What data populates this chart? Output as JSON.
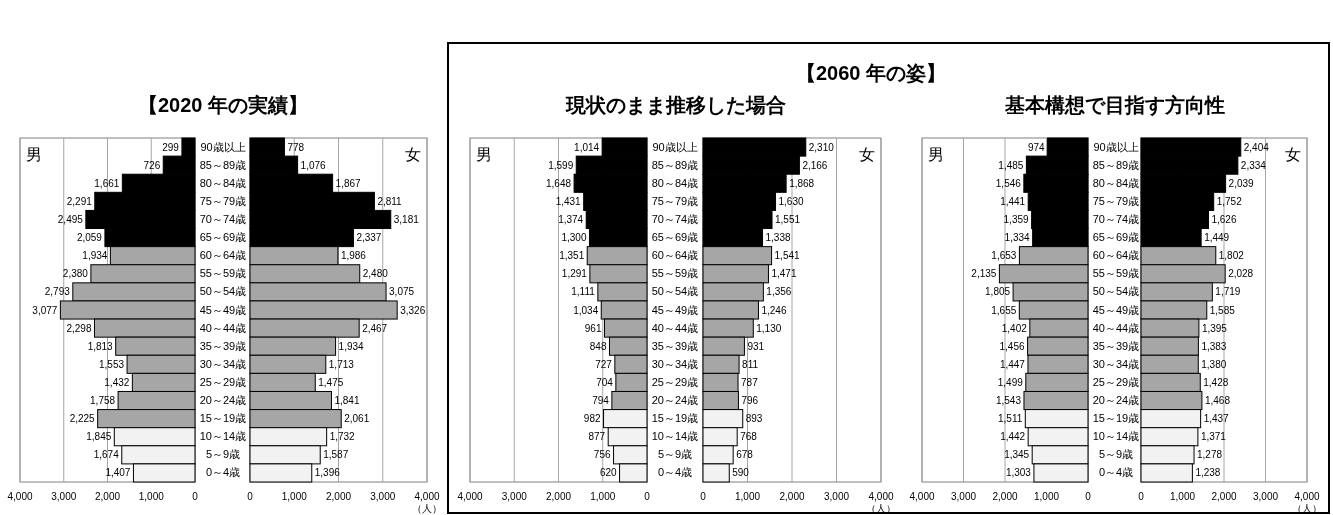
{
  "chart_data": [
    {
      "type": "bar",
      "orientation": "horizontal",
      "title": "【2020 年の実績】",
      "annotations": [
        "男"
      ],
      "categories": [
        "90歳以上",
        "85～89歳",
        "80～84歳",
        "75～79歳",
        "70～74歳",
        "65～69歳",
        "60～64歳",
        "55～59歳",
        "50～54歳",
        "45～49歳",
        "40～44歳",
        "35～39歳",
        "30～34歳",
        "25～29歳",
        "20～24歳",
        "15～19歳",
        "10～14歳",
        "5～9歳",
        "0～4歳"
      ],
      "values": [
        299,
        726,
        1661,
        2291,
        2495,
        2059,
        1934,
        2380,
        2793,
        3077,
        2298,
        1813,
        1553,
        1432,
        1758,
        2225,
        1845,
        1674,
        1407
      ],
      "value_labels": [
        "299",
        "726",
        "1,661",
        "2,291",
        "2,495",
        "2,059",
        "1,934",
        "2,380",
        "2,793",
        "3,077",
        "2,298",
        "1,813",
        "1,553",
        "1,432",
        "1,758",
        "2,225",
        "1,845",
        "1,674",
        "1,407"
      ],
      "colors": [
        "#000000",
        "#000000",
        "#000000",
        "#000000",
        "#000000",
        "#000000",
        "#a6a6a6",
        "#a6a6a6",
        "#a6a6a6",
        "#a6a6a6",
        "#a6a6a6",
        "#a6a6a6",
        "#a6a6a6",
        "#a6a6a6",
        "#a6a6a6",
        "#a6a6a6",
        "#f2f2f2",
        "#f2f2f2",
        "#f2f2f2"
      ],
      "xlim": [
        4000,
        0
      ],
      "xticks": [
        {
          "value": 4000,
          "label": "4,000"
        },
        {
          "value": 3000,
          "label": "3,000"
        },
        {
          "value": 2000,
          "label": "2,000"
        },
        {
          "value": 1000,
          "label": "1,000"
        },
        {
          "value": 0,
          "label": "0"
        }
      ],
      "grid": "x"
    },
    {
      "type": "bar",
      "orientation": "horizontal",
      "annotations": [
        "女"
      ],
      "xlabel": "（人）",
      "tick_labels": "x",
      "categories": [
        null,
        null,
        null,
        null,
        null,
        null,
        null,
        null,
        null,
        null,
        null,
        null,
        null,
        null,
        null,
        null,
        null,
        null,
        null
      ],
      "values": [
        778,
        1076,
        1867,
        2811,
        3181,
        2337,
        1986,
        2480,
        3075,
        3326,
        2467,
        1934,
        1713,
        1475,
        1841,
        2061,
        1732,
        1587,
        1396
      ],
      "value_labels": [
        "778",
        "1,076",
        "1,867",
        "2,811",
        "3,181",
        "2,337",
        "1,986",
        "2,480",
        "3,075",
        "3,326",
        "2,467",
        "1,934",
        "1,713",
        "1,475",
        "1,841",
        "2,061",
        "1,732",
        "1,587",
        "1,396"
      ],
      "colors": [
        "#000000",
        "#000000",
        "#000000",
        "#000000",
        "#000000",
        "#000000",
        "#a6a6a6",
        "#a6a6a6",
        "#a6a6a6",
        "#a6a6a6",
        "#a6a6a6",
        "#a6a6a6",
        "#a6a6a6",
        "#a6a6a6",
        "#a6a6a6",
        "#a6a6a6",
        "#f2f2f2",
        "#f2f2f2",
        "#f2f2f2"
      ],
      "xlim": [
        0,
        4000
      ],
      "xticks": [
        {
          "value": 0,
          "label": "0"
        },
        {
          "value": 1000,
          "label": "1,000"
        },
        {
          "value": 2000,
          "label": "2,000"
        },
        {
          "value": 3000,
          "label": "3,000"
        },
        {
          "value": 4000,
          "label": "4,000"
        }
      ],
      "grid": "x"
    },
    {
      "type": "bar",
      "orientation": "horizontal",
      "title": "現状のまま推移した場合",
      "annotations": [
        "男"
      ],
      "categories": [
        "90歳以上",
        "85～89歳",
        "80～84歳",
        "75～79歳",
        "70～74歳",
        "65～69歳",
        "60～64歳",
        "55～59歳",
        "50～54歳",
        "45～49歳",
        "40～44歳",
        "35～39歳",
        "30～34歳",
        "25～29歳",
        "20～24歳",
        "15～19歳",
        "10～14歳",
        "5～9歳",
        "0～4歳"
      ],
      "values": [
        1014,
        1599,
        1648,
        1431,
        1374,
        1300,
        1351,
        1291,
        1111,
        1034,
        961,
        848,
        727,
        704,
        794,
        982,
        877,
        756,
        620
      ],
      "value_labels": [
        "1,014",
        "1,599",
        "1,648",
        "1,431",
        "1,374",
        "1,300",
        "1,351",
        "1,291",
        "1,111",
        "1,034",
        "961",
        "848",
        "727",
        "704",
        "794",
        "982",
        "877",
        "756",
        "620"
      ],
      "colors": [
        "#000000",
        "#000000",
        "#000000",
        "#000000",
        "#000000",
        "#000000",
        "#a6a6a6",
        "#a6a6a6",
        "#a6a6a6",
        "#a6a6a6",
        "#a6a6a6",
        "#a6a6a6",
        "#a6a6a6",
        "#a6a6a6",
        "#a6a6a6",
        "#f2f2f2",
        "#f2f2f2",
        "#f2f2f2",
        "#f2f2f2"
      ],
      "xlim": [
        4000,
        0
      ],
      "xticks": [
        {
          "value": 4000,
          "label": "4,000"
        },
        {
          "value": 3000,
          "label": "3,000"
        },
        {
          "value": 2000,
          "label": "2,000"
        },
        {
          "value": 1000,
          "label": "1,000"
        },
        {
          "value": 0,
          "label": "0"
        }
      ],
      "grid": "x"
    },
    {
      "type": "bar",
      "orientation": "horizontal",
      "title": "【2060 年の姿】",
      "annotations": [
        "女"
      ],
      "xlabel": "（人）",
      "tick_labels": "x",
      "categories": [
        null,
        null,
        null,
        null,
        null,
        null,
        null,
        null,
        null,
        null,
        null,
        null,
        null,
        null,
        null,
        null,
        null,
        null,
        null
      ],
      "values": [
        2310,
        2166,
        1868,
        1630,
        1551,
        1338,
        1541,
        1471,
        1356,
        1246,
        1130,
        931,
        811,
        787,
        796,
        893,
        768,
        678,
        590
      ],
      "value_labels": [
        "2,310",
        "2,166",
        "1,868",
        "1,630",
        "1,551",
        "1,338",
        "1,541",
        "1,471",
        "1,356",
        "1,246",
        "1,130",
        "931",
        "811",
        "787",
        "796",
        "893",
        "768",
        "678",
        "590"
      ],
      "colors": [
        "#000000",
        "#000000",
        "#000000",
        "#000000",
        "#000000",
        "#000000",
        "#a6a6a6",
        "#a6a6a6",
        "#a6a6a6",
        "#a6a6a6",
        "#a6a6a6",
        "#a6a6a6",
        "#a6a6a6",
        "#a6a6a6",
        "#a6a6a6",
        "#f2f2f2",
        "#f2f2f2",
        "#f2f2f2",
        "#f2f2f2"
      ],
      "xlim": [
        0,
        4000
      ],
      "xticks": [
        {
          "value": 0,
          "label": "0"
        },
        {
          "value": 1000,
          "label": "1,000"
        },
        {
          "value": 2000,
          "label": "2,000"
        },
        {
          "value": 3000,
          "label": "3,000"
        },
        {
          "value": 4000,
          "label": "4,000"
        }
      ],
      "grid": "x"
    },
    {
      "type": "bar",
      "orientation": "horizontal",
      "title": "基本構想で目指す方向性",
      "annotations": [
        "男"
      ],
      "categories": [
        "90歳以上",
        "85～89歳",
        "80～84歳",
        "75～79歳",
        "70～74歳",
        "65～69歳",
        "60～64歳",
        "55～59歳",
        "50～54歳",
        "45～49歳",
        "40～44歳",
        "35～39歳",
        "30～34歳",
        "25～29歳",
        "20～24歳",
        "15～19歳",
        "10～14歳",
        "5～9歳",
        "0～4歳"
      ],
      "values": [
        974,
        1485,
        1546,
        1441,
        1359,
        1334,
        1653,
        2135,
        1805,
        1655,
        1402,
        1456,
        1447,
        1499,
        1543,
        1511,
        1442,
        1345,
        1303
      ],
      "value_labels": [
        "974",
        "1,485",
        "1,546",
        "1,441",
        "1,359",
        "1,334",
        "1,653",
        "2,135",
        "1,805",
        "1,655",
        "1,402",
        "1,456",
        "1,447",
        "1,499",
        "1,543",
        "1,511",
        "1,442",
        "1,345",
        "1,303"
      ],
      "colors": [
        "#000000",
        "#000000",
        "#000000",
        "#000000",
        "#000000",
        "#000000",
        "#a6a6a6",
        "#a6a6a6",
        "#a6a6a6",
        "#a6a6a6",
        "#a6a6a6",
        "#a6a6a6",
        "#a6a6a6",
        "#a6a6a6",
        "#a6a6a6",
        "#f2f2f2",
        "#f2f2f2",
        "#f2f2f2",
        "#f2f2f2"
      ],
      "xlim": [
        4000,
        0
      ],
      "xticks": [
        {
          "value": 4000,
          "label": "4,000"
        },
        {
          "value": 3000,
          "label": "3,000"
        },
        {
          "value": 2000,
          "label": "2,000"
        },
        {
          "value": 1000,
          "label": "1,000"
        },
        {
          "value": 0,
          "label": "0"
        }
      ],
      "grid": "x"
    },
    {
      "type": "bar",
      "orientation": "horizontal",
      "annotations": [
        "女"
      ],
      "xlabel": "（人）",
      "tick_labels": "x",
      "categories": [
        null,
        null,
        null,
        null,
        null,
        null,
        null,
        null,
        null,
        null,
        null,
        null,
        null,
        null,
        null,
        null,
        null,
        null,
        null
      ],
      "values": [
        2404,
        2334,
        2039,
        1752,
        1626,
        1449,
        1802,
        2028,
        1719,
        1585,
        1395,
        1383,
        1380,
        1428,
        1468,
        1437,
        1371,
        1278,
        1238
      ],
      "value_labels": [
        "2,404",
        "2,334",
        "2,039",
        "1,752",
        "1,626",
        "1,449",
        "1,802",
        "2,028",
        "1,719",
        "1,585",
        "1,395",
        "1,383",
        "1,380",
        "1,428",
        "1,468",
        "1,437",
        "1,371",
        "1,278",
        "1,238"
      ],
      "colors": [
        "#000000",
        "#000000",
        "#000000",
        "#000000",
        "#000000",
        "#000000",
        "#a6a6a6",
        "#a6a6a6",
        "#a6a6a6",
        "#a6a6a6",
        "#a6a6a6",
        "#a6a6a6",
        "#a6a6a6",
        "#a6a6a6",
        "#a6a6a6",
        "#f2f2f2",
        "#f2f2f2",
        "#f2f2f2",
        "#f2f2f2"
      ],
      "xlim": [
        0,
        4000
      ],
      "xticks": [
        {
          "value": 0,
          "label": "0"
        },
        {
          "value": 1000,
          "label": "1,000"
        },
        {
          "value": 2000,
          "label": "2,000"
        },
        {
          "value": 3000,
          "label": "3,000"
        },
        {
          "value": 4000,
          "label": "4,000"
        }
      ],
      "grid": "x"
    }
  ]
}
